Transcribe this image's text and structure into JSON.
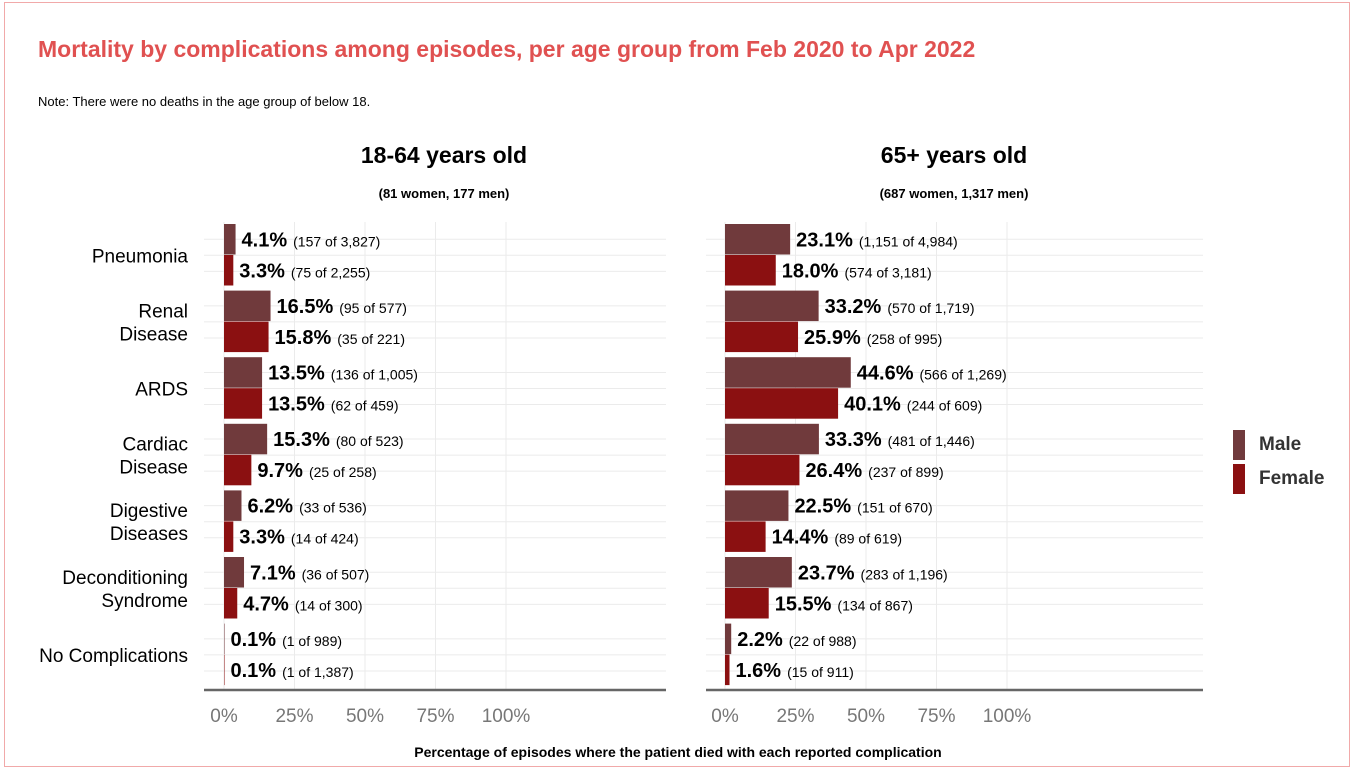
{
  "chart_data": {
    "type": "bar",
    "orientation": "horizontal",
    "title": "Mortality by complications among episodes, per age group from Feb 2020 to Apr 2022",
    "note": "Note: There were no deaths in the age group of below 18.",
    "xlabel": "Percentage of episodes where the patient died with each reported complication",
    "xlim": [
      0,
      100
    ],
    "x_ticks": [
      "0%",
      "25%",
      "50%",
      "75%",
      "100%"
    ],
    "legend_placement": "right",
    "categories": [
      [
        "Pneumonia"
      ],
      [
        "Renal",
        "Disease"
      ],
      [
        "ARDS"
      ],
      [
        "Cardiac",
        "Disease"
      ],
      [
        "Digestive",
        "Diseases"
      ],
      [
        "Deconditioning",
        "Syndrome"
      ],
      [
        "No Complications"
      ]
    ],
    "series": [
      {
        "name": "Male",
        "color": "#703a3c"
      },
      {
        "name": "Female",
        "color": "#8b1011"
      }
    ],
    "panels": [
      {
        "title": "18-64 years old",
        "subtitle": "(81 women, 177 men)",
        "male": {
          "values": [
            4.1,
            16.5,
            13.5,
            15.3,
            6.2,
            7.1,
            0.1
          ],
          "labels": [
            "4.1%",
            "16.5%",
            "13.5%",
            "15.3%",
            "6.2%",
            "7.1%",
            "0.1%"
          ],
          "counts": [
            "(157 of 3,827)",
            "(95 of 577)",
            "(136 of 1,005)",
            "(80 of 523)",
            "(33 of 536)",
            "(36 of 507)",
            "(1 of 989)"
          ]
        },
        "female": {
          "values": [
            3.3,
            15.8,
            13.5,
            9.7,
            3.3,
            4.7,
            0.1
          ],
          "labels": [
            "3.3%",
            "15.8%",
            "13.5%",
            "9.7%",
            "3.3%",
            "4.7%",
            "0.1%"
          ],
          "counts": [
            "(75 of 2,255)",
            "(35 of 221)",
            "(62 of 459)",
            "(25 of 258)",
            "(14 of 424)",
            "(14 of 300)",
            "(1 of 1,387)"
          ]
        }
      },
      {
        "title": "65+ years old",
        "subtitle": "(687 women, 1,317 men)",
        "male": {
          "values": [
            23.1,
            33.2,
            44.6,
            33.3,
            22.5,
            23.7,
            2.2
          ],
          "labels": [
            "23.1%",
            "33.2%",
            "44.6%",
            "33.3%",
            "22.5%",
            "23.7%",
            "2.2%"
          ],
          "counts": [
            "(1,151 of 4,984)",
            "(570 of 1,719)",
            "(566 of 1,269)",
            "(481 of 1,446)",
            "(151 of 670)",
            "(283 of 1,196)",
            "(22 of 988)"
          ]
        },
        "female": {
          "values": [
            18.0,
            25.9,
            40.1,
            26.4,
            14.4,
            15.5,
            1.6
          ],
          "labels": [
            "18.0%",
            "25.9%",
            "40.1%",
            "26.4%",
            "14.4%",
            "15.5%",
            "1.6%"
          ],
          "counts": [
            "(574 of 3,181)",
            "(258 of 995)",
            "(244 of 609)",
            "(237 of 899)",
            "(89 of 619)",
            "(134 of 867)",
            "(15 of 911)"
          ]
        }
      }
    ]
  }
}
